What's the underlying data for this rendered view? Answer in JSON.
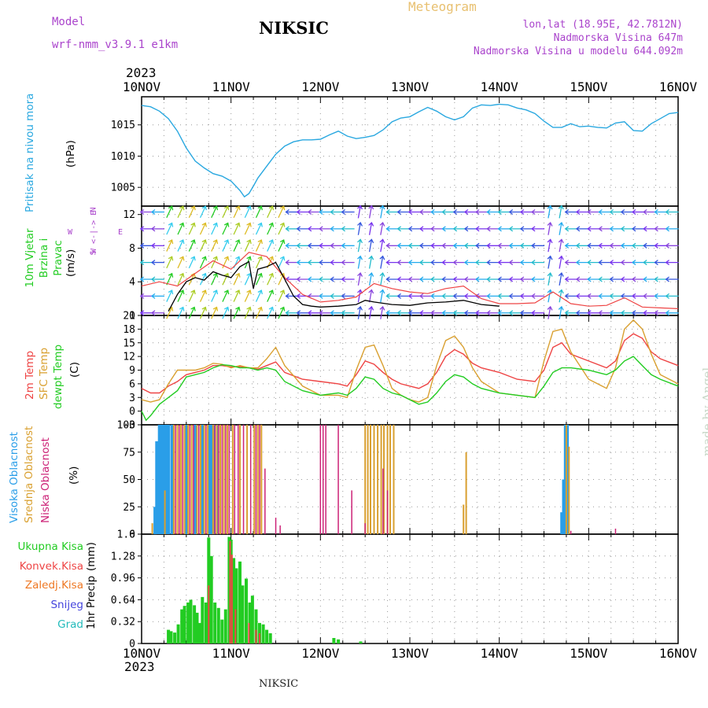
{
  "header": {
    "model_label": "Model",
    "model_name": "wrf-nmm_v3.9.1  e1km",
    "title": "NIKSIC",
    "subtitle": "Meteogram",
    "coords": "lon,lat (18.95E, 42.7812N)",
    "elev": "Nadmorska Visina 647m",
    "elev_model": "Nadmorska Visina u modelu 644.092m",
    "year_top": "2023",
    "year_bottom": "2023",
    "footer": "NIKSIC",
    "watermark": "made by Angel"
  },
  "colors": {
    "pressure": "#2aa8e0",
    "t2m": "#ee4444",
    "sfc": "#d9a030",
    "dew": "#22cc22",
    "high": "#2a9ee8",
    "mid": "#d9a030",
    "low": "#cc2277",
    "total": "#22cc22",
    "conv": "#ee4444",
    "frz": "#ee7722",
    "snow": "#4444dd",
    "grad": "#22bbbb",
    "wind_speed": "#000000",
    "wind_gust": "#ee4444",
    "label_purple": "#aa44cc"
  },
  "chart_data": [
    {
      "type": "line",
      "panel": "pressure",
      "ylabel": "Pritisak na nivou mora",
      "unit": "(hPa)",
      "ylim": [
        1002,
        1019.5
      ],
      "yticks": [
        1005,
        1010,
        1015
      ],
      "x_day": [
        0,
        0.1,
        0.2,
        0.3,
        0.4,
        0.5,
        0.6,
        0.7,
        0.8,
        0.9,
        1.0,
        1.1,
        1.15,
        1.2,
        1.25,
        1.3,
        1.4,
        1.5,
        1.6,
        1.7,
        1.8,
        1.9,
        2.0,
        2.1,
        2.2,
        2.3,
        2.4,
        2.5,
        2.6,
        2.7,
        2.8,
        2.9,
        3.0,
        3.1,
        3.2,
        3.3,
        3.4,
        3.5,
        3.6,
        3.7,
        3.8,
        3.9,
        4.0,
        4.1,
        4.2,
        4.3,
        4.4,
        4.5,
        4.6,
        4.7,
        4.8,
        4.9,
        5.0,
        5.1,
        5.2,
        5.3,
        5.4,
        5.5,
        5.6,
        5.7,
        5.8,
        5.9,
        6.0
      ],
      "values": [
        1018.1,
        1017.9,
        1017.2,
        1016,
        1014,
        1011.3,
        1009.2,
        1008.1,
        1007.2,
        1006.8,
        1006,
        1004.5,
        1003.5,
        1004,
        1005.2,
        1006.5,
        1008.4,
        1010.3,
        1011.6,
        1012.3,
        1012.6,
        1012.6,
        1012.7,
        1013.4,
        1014,
        1013.2,
        1012.8,
        1013,
        1013.3,
        1014.2,
        1015.5,
        1016.1,
        1016.3,
        1017.1,
        1017.8,
        1017.2,
        1016.3,
        1015.8,
        1016.3,
        1017.7,
        1018.2,
        1018.1,
        1018.3,
        1018.2,
        1017.7,
        1017.4,
        1016.8,
        1015.6,
        1014.6,
        1014.6,
        1015.2,
        1014.7,
        1014.8,
        1014.6,
        1014.5,
        1015.3,
        1015.5,
        1014.1,
        1014,
        1015.2,
        1016,
        1016.8,
        1017
      ]
    },
    {
      "type": "line",
      "panel": "wind",
      "ylabel": "10m Vjetar Brzina i Pravac",
      "unit": "(m/s)",
      "compass": [
        "N",
        "W <-|-> E",
        "S"
      ],
      "ylim": [
        0,
        13
      ],
      "yticks": [
        0,
        4,
        8,
        12
      ],
      "series": [
        {
          "name": "speed",
          "x_day": [
            0.3,
            0.4,
            0.5,
            0.6,
            0.7,
            0.8,
            0.9,
            1.0,
            1.1,
            1.2,
            1.25,
            1.3,
            1.4,
            1.5,
            1.6,
            1.7,
            1.8,
            1.9,
            2.0,
            2.2,
            2.4,
            2.5,
            2.6,
            2.8,
            3.0,
            3.2,
            3.4,
            3.6,
            3.8,
            4.0
          ],
          "values": [
            0.5,
            2.5,
            4,
            4.5,
            4.2,
            5.2,
            4.8,
            4.5,
            5.8,
            6.4,
            3.2,
            5.5,
            5.8,
            6.3,
            4.3,
            2.3,
            1.3,
            1.1,
            1,
            1.1,
            1.3,
            1.8,
            1.6,
            1.3,
            1.2,
            1.5,
            1.6,
            1.8,
            1.3,
            1.1
          ]
        },
        {
          "name": "gust",
          "x_day": [
            0,
            0.2,
            0.4,
            0.6,
            0.8,
            1.0,
            1.2,
            1.4,
            1.6,
            1.8,
            2.0,
            2.2,
            2.4,
            2.6,
            2.8,
            3.0,
            3.2,
            3.4,
            3.6,
            3.8,
            4.0,
            4.2,
            4.4,
            4.6,
            4.8,
            5.0,
            5.2,
            5.4,
            5.6,
            5.8,
            6.0
          ],
          "values": [
            3.5,
            4,
            3.5,
            5,
            6.5,
            5.5,
            7.5,
            7,
            4.5,
            2.5,
            1.6,
            1.8,
            2.2,
            3.8,
            3.2,
            2.8,
            2.6,
            3.2,
            3.5,
            2,
            1.4,
            1.4,
            1.5,
            2.8,
            1.4,
            1.1,
            1.2,
            2.1,
            1,
            0.9,
            0.8
          ]
        }
      ]
    },
    {
      "type": "line",
      "panel": "temperature",
      "ylabels": [
        "2m Temp",
        "SFC Temp",
        "dewpt Temp"
      ],
      "unit": "(C)",
      "ylim": [
        -3,
        21
      ],
      "yticks": [
        -3,
        0,
        3,
        6,
        9,
        12,
        15,
        18,
        21
      ],
      "series": [
        {
          "name": "2m Temp",
          "x_day": [
            0,
            0.1,
            0.2,
            0.3,
            0.4,
            0.5,
            0.6,
            0.7,
            0.8,
            0.9,
            1.0,
            1.1,
            1.2,
            1.3,
            1.4,
            1.5,
            1.6,
            1.8,
            2.0,
            2.2,
            2.3,
            2.4,
            2.5,
            2.6,
            2.7,
            2.8,
            2.9,
            3.0,
            3.1,
            3.2,
            3.3,
            3.4,
            3.5,
            3.6,
            3.7,
            3.8,
            4.0,
            4.2,
            4.4,
            4.5,
            4.6,
            4.7,
            4.8,
            5.0,
            5.2,
            5.3,
            5.4,
            5.5,
            5.6,
            5.7,
            5.8,
            6.0
          ],
          "values": [
            5,
            4,
            4,
            5.5,
            6.5,
            8,
            8.5,
            9,
            10,
            10,
            9.7,
            9.8,
            9.5,
            9.2,
            10,
            10.8,
            8.5,
            7,
            6.5,
            6,
            5.5,
            8,
            11,
            10.3,
            8.5,
            7,
            6,
            5.5,
            5,
            6,
            8.5,
            12,
            13.5,
            12.5,
            10.5,
            9.5,
            8.5,
            7,
            6.5,
            9,
            14,
            15,
            12.5,
            11,
            9.5,
            11,
            15.5,
            17,
            16,
            13,
            11.5,
            10
          ]
        },
        {
          "name": "SFC Temp",
          "x_day": [
            0,
            0.1,
            0.2,
            0.3,
            0.4,
            0.5,
            0.6,
            0.7,
            0.8,
            0.9,
            1.0,
            1.1,
            1.2,
            1.3,
            1.4,
            1.5,
            1.6,
            1.8,
            2.0,
            2.2,
            2.3,
            2.4,
            2.5,
            2.6,
            2.7,
            2.8,
            2.9,
            3.0,
            3.1,
            3.2,
            3.3,
            3.4,
            3.5,
            3.6,
            3.7,
            3.8,
            4.0,
            4.2,
            4.4,
            4.5,
            4.6,
            4.7,
            4.8,
            5.0,
            5.2,
            5.3,
            5.4,
            5.5,
            5.6,
            5.7,
            5.8,
            6.0
          ],
          "values": [
            2.5,
            2,
            2.5,
            6,
            9,
            9,
            9,
            9.5,
            10.5,
            10.3,
            9.5,
            10,
            9.5,
            9.5,
            11.5,
            14,
            10,
            5.5,
            3.5,
            3.5,
            3,
            9,
            14,
            14.5,
            10,
            5,
            3.5,
            2.5,
            2,
            3,
            10,
            15.5,
            16.5,
            14,
            9.5,
            6.5,
            4,
            3.5,
            3,
            11,
            17.5,
            18,
            13,
            7,
            5,
            9.5,
            18,
            20,
            18,
            12.5,
            8,
            6
          ]
        },
        {
          "name": "dewpt Temp",
          "x_day": [
            0,
            0.05,
            0.1,
            0.2,
            0.3,
            0.4,
            0.5,
            0.6,
            0.7,
            0.8,
            0.9,
            1.0,
            1.1,
            1.2,
            1.3,
            1.4,
            1.5,
            1.6,
            1.8,
            2.0,
            2.2,
            2.3,
            2.4,
            2.5,
            2.6,
            2.7,
            2.8,
            2.9,
            3.0,
            3.1,
            3.2,
            3.3,
            3.4,
            3.5,
            3.6,
            3.7,
            3.8,
            4.0,
            4.2,
            4.4,
            4.5,
            4.6,
            4.7,
            4.8,
            5.0,
            5.2,
            5.3,
            5.4,
            5.5,
            5.6,
            5.7,
            5.8,
            6.0
          ],
          "values": [
            0,
            -2,
            -1,
            1.5,
            3,
            4.5,
            7.5,
            8,
            8.5,
            9.5,
            10.2,
            10,
            9.5,
            9.5,
            9,
            9.5,
            9,
            6.5,
            4.5,
            3.5,
            4,
            3.5,
            5,
            7.5,
            7,
            5,
            4,
            3.5,
            2.5,
            1.5,
            2,
            4,
            6.5,
            8,
            7.5,
            6,
            5,
            4,
            3.5,
            3,
            5.5,
            8.5,
            9.5,
            9.5,
            9,
            8,
            9,
            11,
            12,
            10,
            8,
            7,
            5.5
          ]
        }
      ]
    },
    {
      "type": "bar",
      "panel": "clouds",
      "ylabels": [
        "Visoka Oblacnost",
        "Srednja Oblacnost",
        "Niska Oblacnost"
      ],
      "unit": "(%)",
      "ylim": [
        0,
        100
      ],
      "yticks": [
        0,
        25,
        50,
        75,
        100
      ],
      "series": [
        {
          "name": "Visoka Oblacnost",
          "x_day": [
            0.15,
            0.17,
            0.2,
            0.22,
            0.24,
            0.27,
            0.3,
            0.34,
            0.5,
            0.6,
            0.68,
            0.76,
            0.78,
            0.81,
            0.85,
            4.7,
            4.72,
            4.74,
            4.76
          ],
          "values": [
            25,
            85,
            100,
            100,
            100,
            100,
            100,
            100,
            100,
            100,
            100,
            100,
            100,
            100,
            100,
            20,
            50,
            100,
            100
          ]
        },
        {
          "name": "Srednja Oblacnost",
          "x_day": [
            0.12,
            0.26,
            0.36,
            0.4,
            0.44,
            0.48,
            0.52,
            0.56,
            0.62,
            0.66,
            0.7,
            0.74,
            0.8,
            0.84,
            0.88,
            0.92,
            0.96,
            1.02,
            1.1,
            1.18,
            1.26,
            1.3,
            1.34,
            2.5,
            2.53,
            2.56,
            2.6,
            2.64,
            2.68,
            2.71,
            2.75,
            2.78,
            2.82,
            3.6,
            3.63,
            4.75,
            4.78
          ],
          "values": [
            10,
            40,
            100,
            100,
            100,
            100,
            100,
            100,
            100,
            100,
            100,
            100,
            100,
            100,
            100,
            100,
            100,
            100,
            100,
            100,
            100,
            100,
            100,
            100,
            100,
            100,
            100,
            100,
            100,
            100,
            100,
            100,
            100,
            27,
            75,
            100,
            80
          ]
        },
        {
          "name": "Niska Oblacnost",
          "x_day": [
            0.38,
            0.42,
            0.46,
            0.54,
            0.58,
            0.64,
            0.72,
            0.82,
            0.86,
            0.9,
            0.94,
            0.98,
            1.04,
            1.08,
            1.14,
            1.22,
            1.28,
            1.32,
            1.38,
            1.5,
            1.55,
            2.0,
            2.03,
            2.06,
            2.2,
            2.35,
            2.5,
            2.7,
            2.75,
            4.8,
            5.3
          ],
          "values": [
            100,
            100,
            100,
            100,
            100,
            100,
            100,
            100,
            100,
            100,
            100,
            100,
            100,
            100,
            100,
            100,
            100,
            100,
            60,
            15,
            8,
            100,
            100,
            100,
            100,
            40,
            10,
            60,
            40,
            3,
            5
          ]
        }
      ]
    },
    {
      "type": "bar",
      "panel": "precip",
      "ylabel": "1hr Precip",
      "unit": "(mm)",
      "legend": [
        "Ukupna Kisa",
        "Konvek.Kisa",
        "Zaledj.Kisa",
        "Snijeg",
        "Grad"
      ],
      "ylim": [
        0,
        1.6
      ],
      "yticks": [
        0,
        0.32,
        0.64,
        0.96,
        1.28,
        1.6
      ],
      "series": [
        {
          "name": "Ukupna Kisa",
          "x_day": [
            0.3,
            0.33,
            0.37,
            0.41,
            0.45,
            0.48,
            0.52,
            0.55,
            0.59,
            0.62,
            0.65,
            0.68,
            0.72,
            0.75,
            0.78,
            0.82,
            0.86,
            0.9,
            0.94,
            0.98,
            1.0,
            1.03,
            1.06,
            1.1,
            1.13,
            1.17,
            1.21,
            1.24,
            1.28,
            1.32,
            1.36,
            1.4,
            1.44,
            2.15,
            2.2,
            2.45
          ],
          "values": [
            0.2,
            0.18,
            0.16,
            0.28,
            0.5,
            0.55,
            0.6,
            0.64,
            0.56,
            0.45,
            0.3,
            0.68,
            0.6,
            1.55,
            1.28,
            0.6,
            0.52,
            0.35,
            0.5,
            1.56,
            1.52,
            1.25,
            1.1,
            1.2,
            0.85,
            0.95,
            0.6,
            0.7,
            0.5,
            0.3,
            0.28,
            0.2,
            0.15,
            0.08,
            0.06,
            0.03
          ]
        },
        {
          "name": "Konvek.Kisa",
          "x_day": [
            0.75,
            0.99,
            1.01,
            1.05,
            1.2,
            1.28,
            1.32
          ],
          "values": [
            0.85,
            1.5,
            1.3,
            0.5,
            0.3,
            0.2,
            0.15
          ]
        }
      ]
    }
  ],
  "axis": {
    "x_labels": [
      "10NOV",
      "11NOV",
      "12NOV",
      "13NOV",
      "14NOV",
      "15NOV",
      "16NOV"
    ]
  }
}
